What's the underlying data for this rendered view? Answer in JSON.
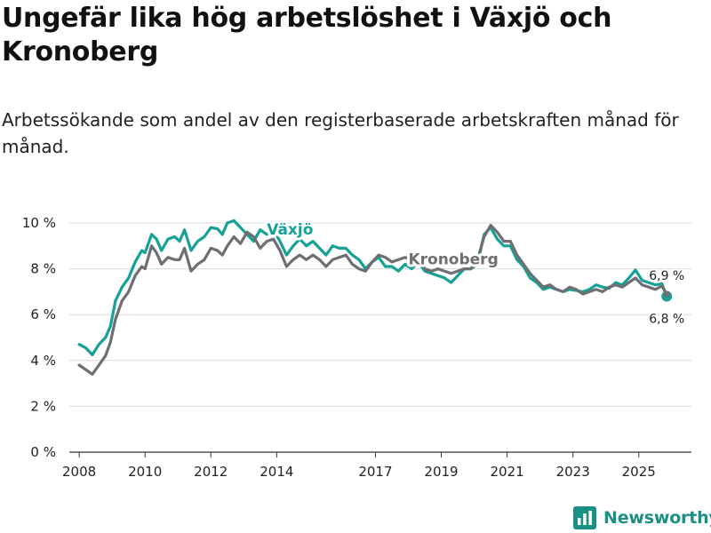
{
  "title": "Ungefär lika hög arbetslöshet i Växjö och Kronoberg",
  "subtitle": "Arbetssökande som andel av den registerbaserade arbetskraften månad för månad.",
  "brand": {
    "name": "Newsworthy",
    "icon": "bar-chart-logo-icon",
    "color": "#1a8f84"
  },
  "colors": {
    "vaxjo": "#15a195",
    "kronoberg": "#6e6e73",
    "grid": "#d9d9d9",
    "axis": "#333333"
  },
  "chart_data": {
    "type": "line",
    "title": "Ungefär lika hög arbetslöshet i Växjö och Kronoberg",
    "xlabel": "",
    "ylabel": "",
    "xlim": [
      2007.7,
      2026.6
    ],
    "ylim": [
      0,
      10
    ],
    "grid": true,
    "x_ticks": [
      2008,
      2010,
      2012,
      2014,
      2017,
      2019,
      2021,
      2023,
      2025
    ],
    "y_ticks": [
      {
        "value": 0,
        "label": "0 %"
      },
      {
        "value": 2,
        "label": "2 %"
      },
      {
        "value": 4,
        "label": "4 %"
      },
      {
        "value": 6,
        "label": "6 %"
      },
      {
        "value": 8,
        "label": "8 %"
      },
      {
        "value": 10,
        "label": "10 %"
      }
    ],
    "series": [
      {
        "name": "Växjö",
        "key": "vaxjo",
        "end_label": "6,8 %",
        "end_value": 6.8,
        "points": [
          [
            2008.0,
            4.7
          ],
          [
            2008.2,
            4.55
          ],
          [
            2008.4,
            4.25
          ],
          [
            2008.6,
            4.7
          ],
          [
            2008.8,
            5.0
          ],
          [
            2008.95,
            5.5
          ],
          [
            2009.1,
            6.6
          ],
          [
            2009.3,
            7.2
          ],
          [
            2009.5,
            7.6
          ],
          [
            2009.7,
            8.3
          ],
          [
            2009.9,
            8.8
          ],
          [
            2010.0,
            8.7
          ],
          [
            2010.2,
            9.5
          ],
          [
            2010.35,
            9.3
          ],
          [
            2010.5,
            8.8
          ],
          [
            2010.7,
            9.3
          ],
          [
            2010.9,
            9.4
          ],
          [
            2011.05,
            9.2
          ],
          [
            2011.2,
            9.7
          ],
          [
            2011.4,
            8.8
          ],
          [
            2011.6,
            9.2
          ],
          [
            2011.8,
            9.4
          ],
          [
            2012.0,
            9.8
          ],
          [
            2012.2,
            9.75
          ],
          [
            2012.35,
            9.5
          ],
          [
            2012.5,
            10.0
          ],
          [
            2012.7,
            10.1
          ],
          [
            2012.9,
            9.8
          ],
          [
            2013.1,
            9.5
          ],
          [
            2013.3,
            9.2
          ],
          [
            2013.5,
            9.7
          ],
          [
            2013.7,
            9.5
          ],
          [
            2013.9,
            9.7
          ],
          [
            2014.1,
            9.2
          ],
          [
            2014.3,
            8.6
          ],
          [
            2014.5,
            9.0
          ],
          [
            2014.7,
            9.3
          ],
          [
            2014.9,
            9.0
          ],
          [
            2015.1,
            9.2
          ],
          [
            2015.3,
            8.9
          ],
          [
            2015.5,
            8.6
          ],
          [
            2015.7,
            9.0
          ],
          [
            2015.9,
            8.9
          ],
          [
            2016.1,
            8.9
          ],
          [
            2016.3,
            8.6
          ],
          [
            2016.5,
            8.4
          ],
          [
            2016.7,
            8.0
          ],
          [
            2016.9,
            8.3
          ],
          [
            2017.1,
            8.5
          ],
          [
            2017.3,
            8.1
          ],
          [
            2017.5,
            8.1
          ],
          [
            2017.7,
            7.9
          ],
          [
            2017.9,
            8.2
          ],
          [
            2018.1,
            8.0
          ],
          [
            2018.3,
            8.3
          ],
          [
            2018.5,
            7.9
          ],
          [
            2018.7,
            7.8
          ],
          [
            2018.9,
            7.7
          ],
          [
            2019.1,
            7.6
          ],
          [
            2019.3,
            7.4
          ],
          [
            2019.5,
            7.7
          ],
          [
            2019.7,
            8.0
          ],
          [
            2019.9,
            8.0
          ],
          [
            2020.1,
            8.2
          ],
          [
            2020.3,
            9.5
          ],
          [
            2020.5,
            9.8
          ],
          [
            2020.7,
            9.3
          ],
          [
            2020.9,
            9.0
          ],
          [
            2021.1,
            9.0
          ],
          [
            2021.3,
            8.4
          ],
          [
            2021.5,
            8.1
          ],
          [
            2021.7,
            7.6
          ],
          [
            2021.9,
            7.4
          ],
          [
            2022.1,
            7.1
          ],
          [
            2022.3,
            7.2
          ],
          [
            2022.5,
            7.1
          ],
          [
            2022.7,
            7.0
          ],
          [
            2022.9,
            7.1
          ],
          [
            2023.1,
            7.05
          ],
          [
            2023.3,
            7.0
          ],
          [
            2023.5,
            7.1
          ],
          [
            2023.7,
            7.3
          ],
          [
            2023.9,
            7.2
          ],
          [
            2024.1,
            7.15
          ],
          [
            2024.3,
            7.4
          ],
          [
            2024.5,
            7.3
          ],
          [
            2024.7,
            7.6
          ],
          [
            2024.9,
            7.95
          ],
          [
            2025.1,
            7.5
          ],
          [
            2025.3,
            7.4
          ],
          [
            2025.5,
            7.3
          ],
          [
            2025.7,
            7.35
          ],
          [
            2025.85,
            6.8
          ]
        ]
      },
      {
        "name": "Kronoberg",
        "key": "kronoberg",
        "end_label": "6,9 %",
        "end_value": 6.9,
        "points": [
          [
            2008.0,
            3.8
          ],
          [
            2008.2,
            3.6
          ],
          [
            2008.4,
            3.4
          ],
          [
            2008.6,
            3.8
          ],
          [
            2008.8,
            4.2
          ],
          [
            2008.95,
            4.8
          ],
          [
            2009.1,
            5.8
          ],
          [
            2009.3,
            6.6
          ],
          [
            2009.5,
            7.0
          ],
          [
            2009.7,
            7.7
          ],
          [
            2009.9,
            8.1
          ],
          [
            2010.0,
            8.0
          ],
          [
            2010.2,
            9.0
          ],
          [
            2010.35,
            8.7
          ],
          [
            2010.5,
            8.2
          ],
          [
            2010.7,
            8.5
          ],
          [
            2010.9,
            8.4
          ],
          [
            2011.05,
            8.4
          ],
          [
            2011.2,
            8.9
          ],
          [
            2011.4,
            7.9
          ],
          [
            2011.6,
            8.2
          ],
          [
            2011.8,
            8.4
          ],
          [
            2012.0,
            8.9
          ],
          [
            2012.2,
            8.8
          ],
          [
            2012.35,
            8.6
          ],
          [
            2012.5,
            9.0
          ],
          [
            2012.7,
            9.4
          ],
          [
            2012.9,
            9.1
          ],
          [
            2013.1,
            9.6
          ],
          [
            2013.3,
            9.4
          ],
          [
            2013.5,
            8.9
          ],
          [
            2013.7,
            9.2
          ],
          [
            2013.9,
            9.3
          ],
          [
            2014.1,
            8.8
          ],
          [
            2014.3,
            8.1
          ],
          [
            2014.5,
            8.4
          ],
          [
            2014.7,
            8.6
          ],
          [
            2014.9,
            8.4
          ],
          [
            2015.1,
            8.6
          ],
          [
            2015.3,
            8.4
          ],
          [
            2015.5,
            8.1
          ],
          [
            2015.7,
            8.4
          ],
          [
            2015.9,
            8.5
          ],
          [
            2016.1,
            8.6
          ],
          [
            2016.3,
            8.2
          ],
          [
            2016.5,
            8.0
          ],
          [
            2016.7,
            7.9
          ],
          [
            2016.9,
            8.3
          ],
          [
            2017.1,
            8.6
          ],
          [
            2017.3,
            8.5
          ],
          [
            2017.5,
            8.3
          ],
          [
            2017.7,
            8.4
          ],
          [
            2017.9,
            8.5
          ],
          [
            2018.1,
            8.4
          ],
          [
            2018.3,
            8.5
          ],
          [
            2018.5,
            8.0
          ],
          [
            2018.7,
            7.9
          ],
          [
            2018.9,
            8.0
          ],
          [
            2019.1,
            7.9
          ],
          [
            2019.3,
            7.8
          ],
          [
            2019.5,
            7.9
          ],
          [
            2019.7,
            8.0
          ],
          [
            2019.9,
            8.0
          ],
          [
            2020.1,
            8.4
          ],
          [
            2020.3,
            9.4
          ],
          [
            2020.5,
            9.9
          ],
          [
            2020.7,
            9.6
          ],
          [
            2020.9,
            9.2
          ],
          [
            2021.1,
            9.2
          ],
          [
            2021.3,
            8.6
          ],
          [
            2021.5,
            8.2
          ],
          [
            2021.7,
            7.8
          ],
          [
            2021.9,
            7.5
          ],
          [
            2022.1,
            7.2
          ],
          [
            2022.3,
            7.3
          ],
          [
            2022.5,
            7.1
          ],
          [
            2022.7,
            7.0
          ],
          [
            2022.9,
            7.2
          ],
          [
            2023.1,
            7.1
          ],
          [
            2023.3,
            6.9
          ],
          [
            2023.5,
            7.0
          ],
          [
            2023.7,
            7.1
          ],
          [
            2023.9,
            7.0
          ],
          [
            2024.1,
            7.2
          ],
          [
            2024.3,
            7.3
          ],
          [
            2024.5,
            7.2
          ],
          [
            2024.7,
            7.4
          ],
          [
            2024.9,
            7.6
          ],
          [
            2025.1,
            7.3
          ],
          [
            2025.3,
            7.2
          ],
          [
            2025.5,
            7.1
          ],
          [
            2025.7,
            7.25
          ],
          [
            2025.85,
            6.9
          ]
        ]
      }
    ]
  }
}
